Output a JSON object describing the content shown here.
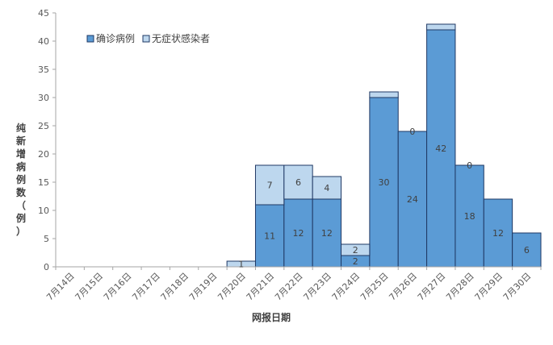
{
  "chart_data": {
    "type": "bar",
    "stacked": true,
    "categories": [
      "7月14日",
      "7月15日",
      "7月16日",
      "7月17日",
      "7月18日",
      "7月19日",
      "7月20日",
      "7月21日",
      "7月22日",
      "7月23日",
      "7月24日",
      "7月25日",
      "7月26日",
      "7月27日",
      "7月28日",
      "7月29日",
      "7月30日"
    ],
    "series": [
      {
        "name": "确诊病例",
        "color": "#5b9bd5",
        "values": [
          0,
          0,
          0,
          0,
          0,
          0,
          0,
          11,
          12,
          12,
          2,
          30,
          24,
          42,
          18,
          12,
          6
        ]
      },
      {
        "name": "无症状感染者",
        "color": "#bdd7ee",
        "values": [
          0,
          0,
          0,
          0,
          0,
          0,
          1,
          7,
          6,
          4,
          2,
          1,
          0,
          1,
          0,
          0,
          0
        ]
      }
    ],
    "bar_labels": [
      {
        "series": 0,
        "index": 7,
        "text": "11"
      },
      {
        "series": 0,
        "index": 8,
        "text": "12"
      },
      {
        "series": 0,
        "index": 9,
        "text": "12"
      },
      {
        "series": 0,
        "index": 10,
        "text": "2"
      },
      {
        "series": 0,
        "index": 11,
        "text": "30"
      },
      {
        "series": 0,
        "index": 12,
        "text": "24"
      },
      {
        "series": 0,
        "index": 13,
        "text": "42"
      },
      {
        "series": 0,
        "index": 14,
        "text": "18"
      },
      {
        "series": 0,
        "index": 15,
        "text": "12"
      },
      {
        "series": 0,
        "index": 16,
        "text": "6"
      },
      {
        "series": 1,
        "index": 6,
        "text": "1"
      },
      {
        "series": 1,
        "index": 7,
        "text": "7"
      },
      {
        "series": 1,
        "index": 8,
        "text": "6"
      },
      {
        "series": 1,
        "index": 9,
        "text": "4"
      },
      {
        "series": 1,
        "index": 10,
        "text": "2"
      },
      {
        "series": 1,
        "index": 12,
        "text": "0"
      },
      {
        "series": 1,
        "index": 14,
        "text": "0"
      }
    ],
    "xlabel": "网报日期",
    "ylabel": "纯新增病例数（例）",
    "ylim": [
      0,
      45
    ],
    "yticks": [
      0,
      5,
      10,
      15,
      20,
      25,
      30,
      35,
      40,
      45
    ],
    "grid": false,
    "legend_position": "top-left",
    "bar_edge_color": "#1f3864"
  }
}
